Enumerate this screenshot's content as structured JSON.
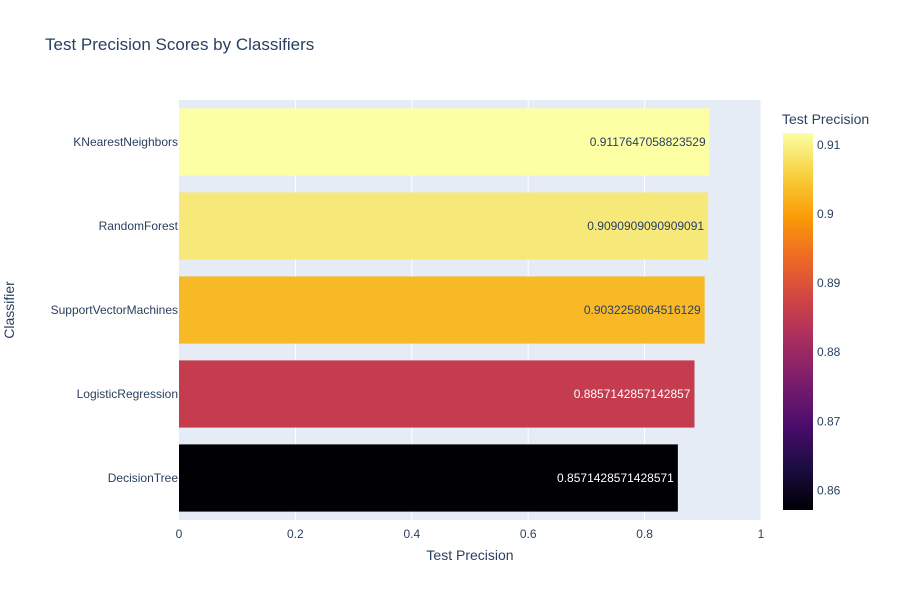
{
  "chart_data": {
    "type": "bar",
    "orientation": "horizontal",
    "title": "Test Precision Scores by Classifiers",
    "xlabel": "Test Precision",
    "ylabel": "Classifier",
    "xlim": [
      0,
      1
    ],
    "x_ticks": [
      "0",
      "0.2",
      "0.4",
      "0.6",
      "0.8",
      "1"
    ],
    "categories": [
      "DecisionTree",
      "LogisticRegression",
      "SupportVectorMachines",
      "RandomForest",
      "KNearestNeighbors"
    ],
    "values": [
      0.8571428571428571,
      0.8857142857142857,
      0.9032258064516129,
      0.9090909090909091,
      0.9117647058823529
    ],
    "value_labels": [
      "0.8571428571428571",
      "0.8857142857142857",
      "0.9032258064516129",
      "0.9090909090909091",
      "0.9117647058823529"
    ],
    "bar_colors": [
      "#000004",
      "#c43c4e",
      "#f8b926",
      "#f6e97a",
      "#fcffa4"
    ],
    "label_colors": [
      "#ffffff",
      "#ffffff",
      "#2a3f5f",
      "#2a3f5f",
      "#2a3f5f"
    ],
    "grid": true,
    "plot_background": "#e5ecf6",
    "colorbar": {
      "title": "Test Precision",
      "colorscale": "Inferno",
      "range": [
        0.8571428571428571,
        0.9117647058823529
      ],
      "ticks": [
        "0.86",
        "0.87",
        "0.88",
        "0.89",
        "0.9",
        "0.91"
      ],
      "tick_values": [
        0.86,
        0.87,
        0.88,
        0.89,
        0.9,
        0.91
      ],
      "gradient_stops": [
        "#000004",
        "#1b0c41",
        "#4a0c6b",
        "#781c6d",
        "#a52c60",
        "#cf4446",
        "#ed6925",
        "#fb9b06",
        "#f7d13d",
        "#fcffa4"
      ]
    }
  }
}
